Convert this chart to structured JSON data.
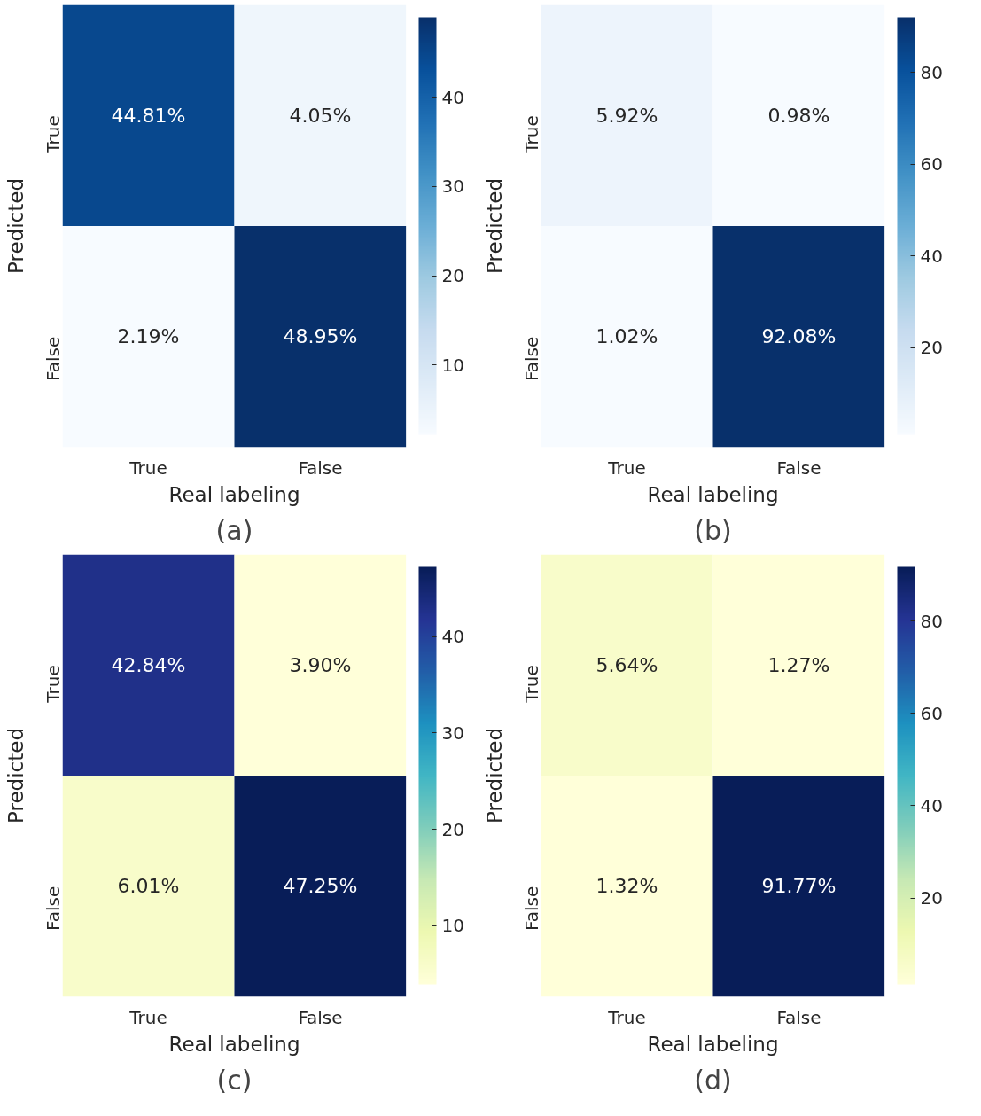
{
  "chart_data": [
    {
      "type": "heatmap",
      "categories": [
        "True",
        "False"
      ],
      "y_categories": [
        "True",
        "False"
      ],
      "xlabel": "Real labeling",
      "ylabel": "Predicted",
      "cells": [
        [
          44.81,
          4.05
        ],
        [
          2.19,
          48.95
        ]
      ],
      "cell_labels": [
        [
          "44.81%",
          "4.05%"
        ],
        [
          "2.19%",
          "48.95%"
        ]
      ],
      "clim": [
        2.19,
        48.95
      ],
      "cticks": [
        10,
        20,
        30,
        40
      ],
      "colors": [
        "#f7fbff",
        "#deebf7",
        "#c6dbef",
        "#9ecae1",
        "#6baed6",
        "#4292c6",
        "#2171b5",
        "#08519c",
        "#08306b"
      ],
      "annotations": [
        "(a)"
      ]
    },
    {
      "type": "heatmap",
      "categories": [
        "True",
        "False"
      ],
      "y_categories": [
        "True",
        "False"
      ],
      "xlabel": "Real labeling",
      "ylabel": "Predicted",
      "cells": [
        [
          5.92,
          0.98
        ],
        [
          1.02,
          92.08
        ]
      ],
      "cell_labels": [
        [
          "5.92%",
          "0.98%"
        ],
        [
          "1.02%",
          "92.08%"
        ]
      ],
      "clim": [
        0.98,
        92.08
      ],
      "cticks": [
        20,
        40,
        60,
        80
      ],
      "colors": [
        "#f7fbff",
        "#deebf7",
        "#c6dbef",
        "#9ecae1",
        "#6baed6",
        "#4292c6",
        "#2171b5",
        "#08519c",
        "#08306b"
      ],
      "annotations": [
        "(b)"
      ]
    },
    {
      "type": "heatmap",
      "categories": [
        "True",
        "False"
      ],
      "y_categories": [
        "True",
        "False"
      ],
      "xlabel": "Real labeling",
      "ylabel": "Predicted",
      "cells": [
        [
          42.84,
          3.9
        ],
        [
          6.01,
          47.25
        ]
      ],
      "cell_labels": [
        [
          "42.84%",
          "3.90%"
        ],
        [
          "6.01%",
          "47.25%"
        ]
      ],
      "clim": [
        3.9,
        47.25
      ],
      "cticks": [
        10,
        20,
        30,
        40
      ],
      "colors": [
        "#ffffd9",
        "#edf8b1",
        "#c7e9b4",
        "#7fcdbb",
        "#41b6c4",
        "#1d91c0",
        "#225ea8",
        "#253494",
        "#081d58"
      ],
      "annotations": [
        "(c)"
      ]
    },
    {
      "type": "heatmap",
      "categories": [
        "True",
        "False"
      ],
      "y_categories": [
        "True",
        "False"
      ],
      "xlabel": "Real labeling",
      "ylabel": "Predicted",
      "cells": [
        [
          5.64,
          1.27
        ],
        [
          1.32,
          91.77
        ]
      ],
      "cell_labels": [
        [
          "5.64%",
          "1.27%"
        ],
        [
          "1.32%",
          "91.77%"
        ]
      ],
      "clim": [
        1.27,
        91.77
      ],
      "cticks": [
        20,
        40,
        60,
        80
      ],
      "colors": [
        "#ffffd9",
        "#edf8b1",
        "#c7e9b4",
        "#7fcdbb",
        "#41b6c4",
        "#1d91c0",
        "#225ea8",
        "#253494",
        "#081d58"
      ],
      "annotations": [
        "(d)"
      ]
    }
  ]
}
